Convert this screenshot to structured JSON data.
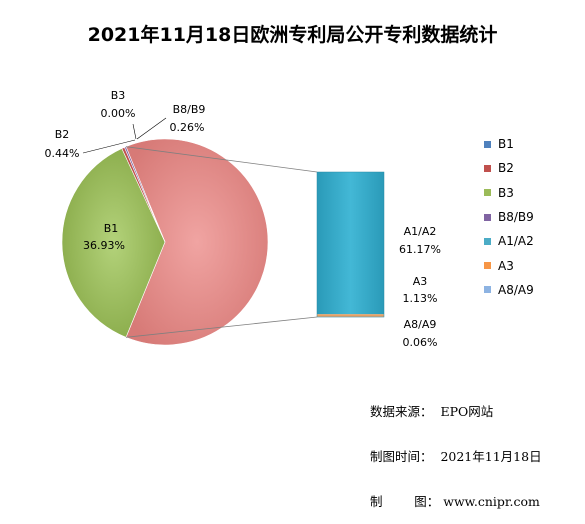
{
  "chart_data": {
    "type": "pie",
    "variant": "pie-of-bar",
    "title": "2021年11月18日欧洲专利局公开专利数据统计",
    "slices": [
      {
        "name": "B1",
        "value": 36.93,
        "label": "36.93%",
        "color": "#9bbb59"
      },
      {
        "name": "B2",
        "value": 0.44,
        "label": "0.44%",
        "color": "#c0504d"
      },
      {
        "name": "B3",
        "value": 0.0,
        "label": "0.00%",
        "color": "#9bbb59"
      },
      {
        "name": "B8/B9",
        "value": 0.26,
        "label": "0.26%",
        "color": "#8064a2"
      }
    ],
    "other_slice": {
      "value": 62.36,
      "color": "#e58a88"
    },
    "bar_segments": [
      {
        "name": "A1/A2",
        "value": 61.17,
        "label": "61.17%",
        "color": "#31a7c5"
      },
      {
        "name": "A3",
        "value": 1.13,
        "label": "1.13%",
        "color": "#e8a064"
      },
      {
        "name": "A8/A9",
        "value": 0.06,
        "label": "0.06%",
        "color": "#8db3e2"
      }
    ],
    "legend": [
      {
        "name": "B1",
        "color": "#4f81bd"
      },
      {
        "name": "B2",
        "color": "#c0504d"
      },
      {
        "name": "B3",
        "color": "#9bbb59"
      },
      {
        "name": "B8/B9",
        "color": "#8064a2"
      },
      {
        "name": "A1/A2",
        "color": "#4bacc6"
      },
      {
        "name": "A3",
        "color": "#f79646"
      },
      {
        "name": "A8/A9",
        "color": "#8db3e2"
      }
    ],
    "legend_position": "right"
  },
  "source": {
    "line1": "数据来源：  EPO网站",
    "line2": "制图时间：  2021年11月18日",
    "line3": "制        图： www.cnipr.com"
  }
}
